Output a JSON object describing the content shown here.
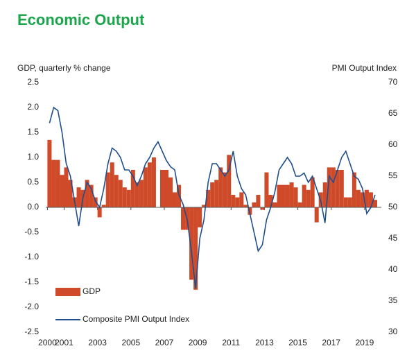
{
  "chart_data": {
    "type": "bar-line",
    "title": "Economic Output",
    "y_label": "GDP, quarterly % change",
    "y2_label": "PMI Output Index",
    "xlim": [
      1999.9,
      2020.0
    ],
    "xticks": [
      2000,
      2001,
      2003,
      2005,
      2007,
      2009,
      2011,
      2013,
      2015,
      2017,
      2019
    ],
    "ylim": [
      -2.5,
      2.5
    ],
    "yticks": [
      {
        "value": -2.5,
        "label": "-2.5"
      },
      {
        "value": -2,
        "label": "-2.0"
      },
      -1.5,
      {
        "value": -1,
        "label": "-1.0"
      },
      -0.5,
      {
        "value": 0,
        "label": "0.0"
      },
      0.5,
      {
        "value": 1,
        "label": "1.0"
      },
      1.5,
      {
        "value": 2,
        "label": "2.0"
      },
      2.5
    ],
    "y2lim": [
      30,
      70
    ],
    "y2ticks": [
      30,
      35,
      40,
      45,
      50,
      55,
      60,
      65,
      70
    ],
    "x": [
      2000,
      2000.25,
      2000.5,
      2000.75,
      2001,
      2001.25,
      2001.5,
      2001.75,
      2002,
      2002.25,
      2002.5,
      2002.75,
      2003,
      2003.25,
      2003.5,
      2003.75,
      2004,
      2004.25,
      2004.5,
      2004.75,
      2005,
      2005.25,
      2005.5,
      2005.75,
      2006,
      2006.25,
      2006.5,
      2006.75,
      2007,
      2007.25,
      2007.5,
      2007.75,
      2008,
      2008.25,
      2008.5,
      2008.75,
      2009,
      2009.25,
      2009.5,
      2009.75,
      2010,
      2010.25,
      2010.5,
      2010.75,
      2011,
      2011.25,
      2011.5,
      2011.75,
      2012,
      2012.25,
      2012.5,
      2012.75,
      2013,
      2013.25,
      2013.5,
      2013.75,
      2014,
      2014.25,
      2014.5,
      2014.75,
      2015,
      2015.25,
      2015.5,
      2015.75,
      2016,
      2016.25,
      2016.5,
      2016.75,
      2017,
      2017.25,
      2017.5,
      2017.75,
      2018,
      2018.25,
      2018.5,
      2018.75,
      2019,
      2019.25,
      2019.5
    ],
    "series": [
      {
        "name": "GDP",
        "type": "bar",
        "color": "#cf4a28",
        "values": [
          1.35,
          0.95,
          0.95,
          0.65,
          0.8,
          0.55,
          0.2,
          0.4,
          0.35,
          0.55,
          0.45,
          0.2,
          -0.2,
          0.05,
          0.7,
          0.9,
          0.65,
          0.55,
          0.4,
          0.35,
          0.75,
          0.5,
          0.55,
          0.8,
          0.9,
          1.0,
          0.0,
          0.75,
          0.75,
          0.6,
          0.3,
          0.45,
          -0.45,
          -0.45,
          -1.45,
          -1.65,
          -0.4,
          0.05,
          0.35,
          0.5,
          0.55,
          0.8,
          0.7,
          1.05,
          0.25,
          0.2,
          0.3,
          0.05,
          -0.15,
          0.1,
          0.25,
          -0.05,
          0.7,
          0.25,
          0.1,
          0.45,
          0.45,
          0.45,
          0.5,
          0.4,
          0.1,
          0.45,
          0.35,
          0.6,
          -0.3,
          0.3,
          0.5,
          0.8,
          0.8,
          0.75,
          0.75,
          0.2,
          0.2,
          0.7,
          0.35,
          0.3,
          0.35,
          0.3,
          0.15
        ]
      },
      {
        "name": "Composite PMI Output Index",
        "type": "line",
        "axis": "y2",
        "color": "#1f4e8c",
        "values": [
          63.5,
          66,
          65.5,
          62,
          57,
          55,
          51,
          47,
          51.5,
          54,
          53,
          51,
          50,
          53,
          57,
          59.5,
          59,
          58,
          56,
          56,
          55,
          53.5,
          55,
          57,
          58,
          59.5,
          60.5,
          59,
          57.5,
          56.5,
          56,
          52,
          50.5,
          48,
          43,
          37,
          45,
          48,
          54,
          57,
          57,
          56,
          55,
          56,
          59,
          55,
          53,
          52,
          49,
          46,
          43,
          44,
          48,
          50,
          52.5,
          56,
          57,
          58,
          57,
          55,
          55,
          55.5,
          54,
          55,
          53,
          51,
          47.5,
          55,
          54,
          56,
          58,
          59,
          57,
          55,
          54.5,
          53,
          49,
          50,
          52
        ]
      }
    ]
  }
}
